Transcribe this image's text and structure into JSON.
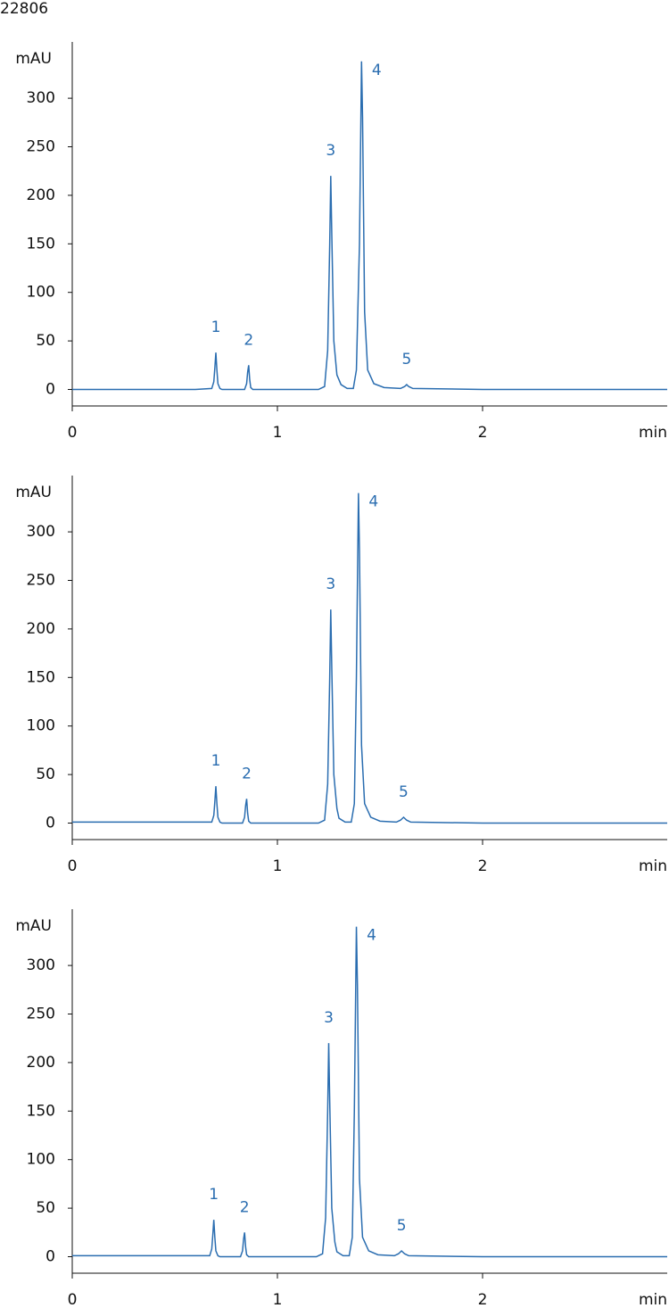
{
  "id": "22806",
  "chart_data": [
    {
      "type": "line",
      "ylabel": "mAU",
      "xlabel": "min",
      "color": "#2a6db0",
      "xlim": [
        0,
        2.9
      ],
      "ylim": [
        -17,
        358
      ],
      "xticks": [
        0,
        1,
        2
      ],
      "yticks": [
        0,
        50,
        100,
        150,
        200,
        250,
        300
      ],
      "x": [
        0,
        0.6,
        0.68,
        0.69,
        0.695,
        0.7,
        0.705,
        0.71,
        0.72,
        0.73,
        0.84,
        0.85,
        0.855,
        0.86,
        0.865,
        0.87,
        0.88,
        1.2,
        1.23,
        1.245,
        1.255,
        1.26,
        1.265,
        1.275,
        1.29,
        1.31,
        1.34,
        1.37,
        1.385,
        1.4,
        1.41,
        1.415,
        1.425,
        1.44,
        1.47,
        1.52,
        1.6,
        1.62,
        1.63,
        1.64,
        1.66,
        2.0,
        2.9
      ],
      "values": [
        0,
        0,
        1,
        8,
        22,
        38,
        20,
        6,
        1,
        0,
        0,
        6,
        18,
        25,
        10,
        2,
        0,
        0,
        3,
        40,
        150,
        220,
        160,
        50,
        15,
        5,
        1,
        1,
        20,
        150,
        338,
        280,
        80,
        20,
        6,
        2,
        1,
        3,
        5,
        3,
        1,
        0,
        0
      ],
      "annotations": [
        {
          "text": "1",
          "x": 0.7,
          "y": 38
        },
        {
          "text": "2",
          "x": 0.86,
          "y": 25
        },
        {
          "text": "3",
          "x": 1.26,
          "y": 220
        },
        {
          "text": "4",
          "x": 1.41,
          "y": 338
        },
        {
          "text": "5",
          "x": 1.63,
          "y": 5
        }
      ]
    },
    {
      "type": "line",
      "ylabel": "mAU",
      "xlabel": "min",
      "color": "#2a6db0",
      "xlim": [
        0,
        2.9
      ],
      "ylim": [
        -17,
        358
      ],
      "xticks": [
        0,
        1,
        2
      ],
      "yticks": [
        0,
        50,
        100,
        150,
        200,
        250,
        300
      ],
      "x": [
        0,
        0.6,
        0.68,
        0.69,
        0.695,
        0.7,
        0.705,
        0.71,
        0.72,
        0.73,
        0.83,
        0.84,
        0.845,
        0.85,
        0.855,
        0.86,
        0.87,
        1.2,
        1.23,
        1.245,
        1.255,
        1.26,
        1.265,
        1.275,
        1.29,
        1.3,
        1.33,
        1.36,
        1.375,
        1.385,
        1.395,
        1.4,
        1.41,
        1.425,
        1.455,
        1.5,
        1.58,
        1.6,
        1.615,
        1.63,
        1.65,
        2.0,
        2.9
      ],
      "values": [
        1,
        1,
        1,
        8,
        22,
        38,
        20,
        6,
        1,
        0,
        0,
        6,
        18,
        25,
        10,
        2,
        0,
        0,
        3,
        40,
        150,
        220,
        160,
        50,
        15,
        5,
        1,
        1,
        20,
        150,
        340,
        280,
        80,
        20,
        6,
        2,
        1,
        3,
        6,
        3,
        1,
        0,
        0
      ],
      "annotations": [
        {
          "text": "1",
          "x": 0.7,
          "y": 38
        },
        {
          "text": "2",
          "x": 0.85,
          "y": 25
        },
        {
          "text": "3",
          "x": 1.26,
          "y": 220
        },
        {
          "text": "4",
          "x": 1.395,
          "y": 340
        },
        {
          "text": "5",
          "x": 1.615,
          "y": 6
        }
      ]
    },
    {
      "type": "line",
      "ylabel": "mAU",
      "xlabel": "min",
      "color": "#2a6db0",
      "xlim": [
        0,
        2.9
      ],
      "ylim": [
        -17,
        358
      ],
      "xticks": [
        0,
        1,
        2
      ],
      "yticks": [
        0,
        50,
        100,
        150,
        200,
        250,
        300
      ],
      "x": [
        0,
        0.6,
        0.67,
        0.68,
        0.685,
        0.69,
        0.695,
        0.7,
        0.71,
        0.72,
        0.82,
        0.83,
        0.835,
        0.84,
        0.845,
        0.85,
        0.86,
        1.19,
        1.22,
        1.235,
        1.245,
        1.25,
        1.255,
        1.265,
        1.28,
        1.29,
        1.32,
        1.35,
        1.365,
        1.375,
        1.385,
        1.39,
        1.4,
        1.415,
        1.445,
        1.49,
        1.57,
        1.59,
        1.605,
        1.62,
        1.64,
        2.0,
        2.9
      ],
      "values": [
        1,
        1,
        1,
        8,
        22,
        38,
        20,
        6,
        1,
        0,
        0,
        6,
        18,
        25,
        10,
        2,
        0,
        0,
        3,
        40,
        150,
        220,
        160,
        50,
        15,
        5,
        1,
        1,
        20,
        150,
        340,
        280,
        80,
        20,
        6,
        2,
        1,
        3,
        6,
        3,
        1,
        0,
        0
      ],
      "annotations": [
        {
          "text": "1",
          "x": 0.69,
          "y": 38
        },
        {
          "text": "2",
          "x": 0.84,
          "y": 25
        },
        {
          "text": "3",
          "x": 1.25,
          "y": 220
        },
        {
          "text": "4",
          "x": 1.385,
          "y": 340
        },
        {
          "text": "5",
          "x": 1.605,
          "y": 6
        }
      ]
    }
  ]
}
